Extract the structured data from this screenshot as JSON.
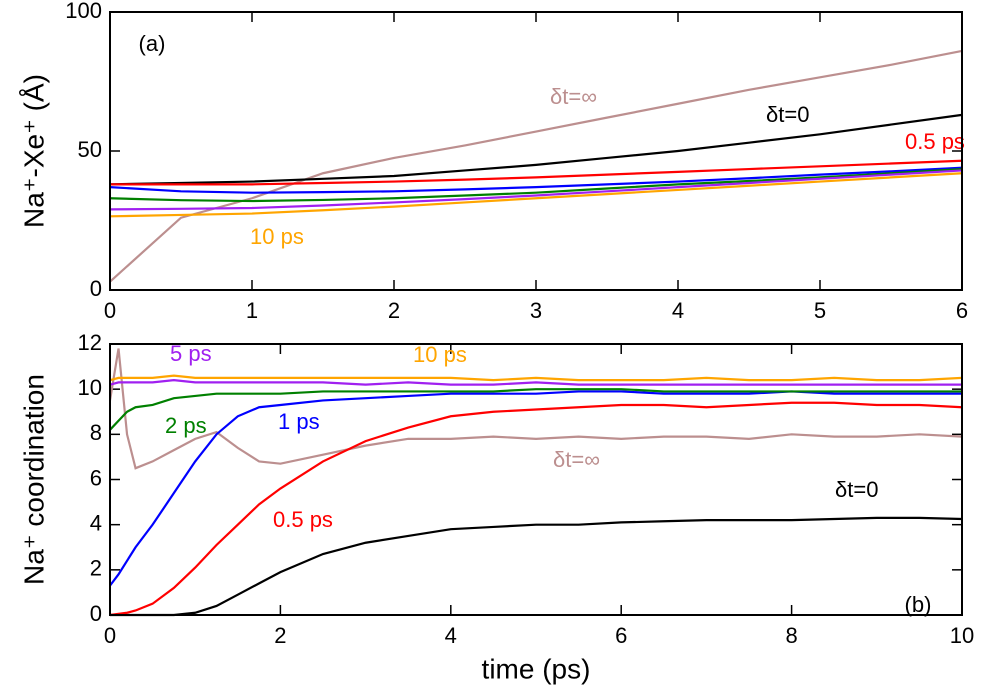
{
  "chart_data": [
    {
      "type": "line",
      "ylabel": "Na⁺-Xe⁺ (Å)",
      "panel_label": "(a)",
      "x": [
        0,
        0.5,
        1,
        1.5,
        2,
        2.5,
        3,
        3.5,
        4,
        4.5,
        5,
        5.5,
        6
      ],
      "xlim": [
        0,
        6
      ],
      "xticks": [
        0,
        1,
        2,
        3,
        4,
        5,
        6
      ],
      "ylim": [
        0,
        100
      ],
      "yticks": [
        0,
        50,
        100
      ],
      "series": [
        {
          "name": "δt=∞",
          "color": "#bc8f8f",
          "values": [
            3,
            26,
            33,
            42,
            47.5,
            52,
            57,
            62,
            67,
            72,
            76.5,
            81,
            86
          ]
        },
        {
          "name": "δt=0",
          "color": "#000000",
          "values": [
            38,
            38.5,
            39,
            40,
            41,
            43,
            45,
            47.5,
            50,
            53,
            56,
            59.5,
            63
          ]
        },
        {
          "name": "0.5 ps",
          "color": "#ff0000",
          "values": [
            38,
            38,
            38,
            38.5,
            39,
            39.7,
            40.5,
            41.5,
            42.5,
            43.5,
            44.5,
            45.5,
            46.5
          ]
        },
        {
          "color": "#0000ff",
          "values": [
            37,
            35.5,
            35,
            35.2,
            35.5,
            36.2,
            37,
            38,
            39,
            40.2,
            41.5,
            42.7,
            44
          ]
        },
        {
          "color": "#008000",
          "values": [
            33,
            32.3,
            32,
            32.4,
            33,
            34,
            35,
            36.5,
            38,
            39.2,
            40.5,
            42,
            43.5
          ]
        },
        {
          "color": "#a020f0",
          "values": [
            29,
            29.2,
            29.5,
            30.4,
            31.5,
            32.7,
            34,
            35.5,
            37,
            38.5,
            40,
            41.5,
            43
          ]
        },
        {
          "name": "10 ps",
          "color": "#ffa500",
          "values": [
            26.5,
            27,
            27.5,
            28.7,
            30,
            31.5,
            33,
            34.5,
            36,
            37.5,
            39,
            40.5,
            42
          ]
        }
      ]
    },
    {
      "type": "line",
      "ylabel": "Na⁺ coordination",
      "xlabel": "time (ps)",
      "panel_label": "(b)",
      "x": [
        0,
        0.1,
        0.2,
        0.3,
        0.5,
        0.75,
        1,
        1.25,
        1.5,
        1.75,
        2,
        2.5,
        3,
        3.5,
        4,
        4.5,
        5,
        5.5,
        6,
        6.5,
        7,
        7.5,
        8,
        8.5,
        9,
        9.5,
        10
      ],
      "xlim": [
        0,
        10
      ],
      "xticks": [
        0,
        2,
        4,
        6,
        8,
        10
      ],
      "ylim": [
        0,
        12
      ],
      "yticks": [
        0,
        2,
        4,
        6,
        8,
        10,
        12
      ],
      "series": [
        {
          "name": "δt=∞",
          "color": "#bc8f8f",
          "values": [
            9.5,
            11.8,
            8,
            6.5,
            6.8,
            7.3,
            7.8,
            8.1,
            7.4,
            6.8,
            6.7,
            7.1,
            7.5,
            7.8,
            7.8,
            7.9,
            7.8,
            7.9,
            7.8,
            7.9,
            7.9,
            7.8,
            8.0,
            7.9,
            7.9,
            8.0,
            7.9
          ]
        },
        {
          "name": "δt=0",
          "color": "#000000",
          "values": [
            0,
            0,
            0,
            0,
            0,
            0,
            0.1,
            0.4,
            0.9,
            1.4,
            1.9,
            2.7,
            3.2,
            3.5,
            3.8,
            3.9,
            4.0,
            4.0,
            4.1,
            4.15,
            4.2,
            4.2,
            4.2,
            4.25,
            4.3,
            4.3,
            4.25
          ]
        },
        {
          "name": "0.5 ps",
          "color": "#ff0000",
          "values": [
            0,
            0.05,
            0.1,
            0.2,
            0.5,
            1.2,
            2.1,
            3.1,
            4.0,
            4.9,
            5.6,
            6.8,
            7.7,
            8.3,
            8.8,
            9.0,
            9.1,
            9.2,
            9.3,
            9.3,
            9.2,
            9.3,
            9.4,
            9.4,
            9.3,
            9.3,
            9.2
          ]
        },
        {
          "name": "1 ps",
          "color": "#0000ff",
          "values": [
            1.3,
            1.8,
            2.4,
            3.0,
            4.0,
            5.4,
            6.8,
            8.0,
            8.8,
            9.2,
            9.3,
            9.5,
            9.6,
            9.7,
            9.8,
            9.8,
            9.8,
            9.9,
            9.9,
            9.8,
            9.8,
            9.8,
            9.9,
            9.8,
            9.8,
            9.8,
            9.8
          ]
        },
        {
          "name": "2 ps",
          "color": "#008000",
          "values": [
            8.2,
            8.6,
            9.0,
            9.2,
            9.3,
            9.6,
            9.7,
            9.8,
            9.8,
            9.8,
            9.8,
            9.9,
            9.9,
            9.9,
            9.9,
            9.9,
            10.0,
            10.0,
            10.0,
            9.9,
            9.9,
            9.9,
            9.9,
            9.9,
            9.9,
            9.9,
            9.9
          ]
        },
        {
          "name": "5 ps",
          "color": "#a020f0",
          "values": [
            10.2,
            10.3,
            10.3,
            10.3,
            10.3,
            10.4,
            10.3,
            10.3,
            10.3,
            10.3,
            10.3,
            10.3,
            10.2,
            10.3,
            10.2,
            10.2,
            10.3,
            10.2,
            10.2,
            10.2,
            10.2,
            10.2,
            10.2,
            10.2,
            10.2,
            10.2,
            10.2
          ]
        },
        {
          "name": "10 ps",
          "color": "#ffa500",
          "values": [
            10.4,
            10.5,
            10.5,
            10.5,
            10.5,
            10.6,
            10.5,
            10.5,
            10.5,
            10.5,
            10.5,
            10.5,
            10.5,
            10.5,
            10.5,
            10.4,
            10.5,
            10.4,
            10.4,
            10.4,
            10.5,
            10.4,
            10.4,
            10.5,
            10.4,
            10.4,
            10.5
          ]
        }
      ]
    }
  ]
}
